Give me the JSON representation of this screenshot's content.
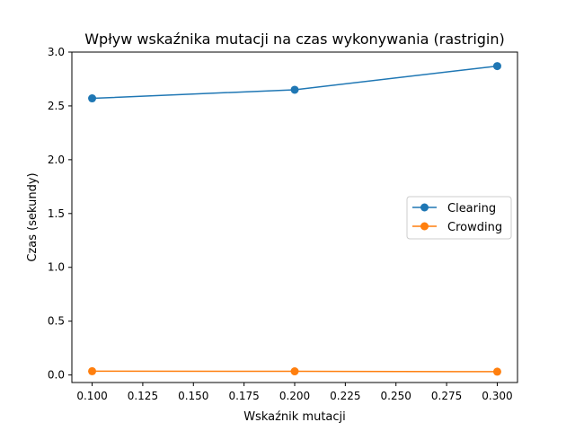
{
  "chart_data": {
    "type": "line",
    "title": "Wpływ wskaźnika mutacji na czas wykonywania (rastrigin)",
    "xlabel": "Wskaźnik mutacji",
    "ylabel": "Czas (sekundy)",
    "x": [
      0.1,
      0.2,
      0.3
    ],
    "xlim": [
      0.09,
      0.31
    ],
    "ylim": [
      -0.07,
      3.0
    ],
    "xticks": [
      0.1,
      0.125,
      0.15,
      0.175,
      0.2,
      0.225,
      0.25,
      0.275,
      0.3
    ],
    "xtick_labels": [
      "0.100",
      "0.125",
      "0.150",
      "0.175",
      "0.200",
      "0.225",
      "0.250",
      "0.275",
      "0.300"
    ],
    "yticks": [
      0.0,
      0.5,
      1.0,
      1.5,
      2.0,
      2.5,
      3.0
    ],
    "ytick_labels": [
      "0.0",
      "0.5",
      "1.0",
      "1.5",
      "2.0",
      "2.5",
      "3.0"
    ],
    "grid": false,
    "legend_position": "center-right",
    "series": [
      {
        "name": "Clearing",
        "values": [
          2.57,
          2.65,
          2.87
        ],
        "color": "#1f77b4",
        "marker": "circle"
      },
      {
        "name": "Crowding",
        "values": [
          0.035,
          0.034,
          0.031
        ],
        "color": "#ff7f0e",
        "marker": "circle"
      }
    ]
  }
}
